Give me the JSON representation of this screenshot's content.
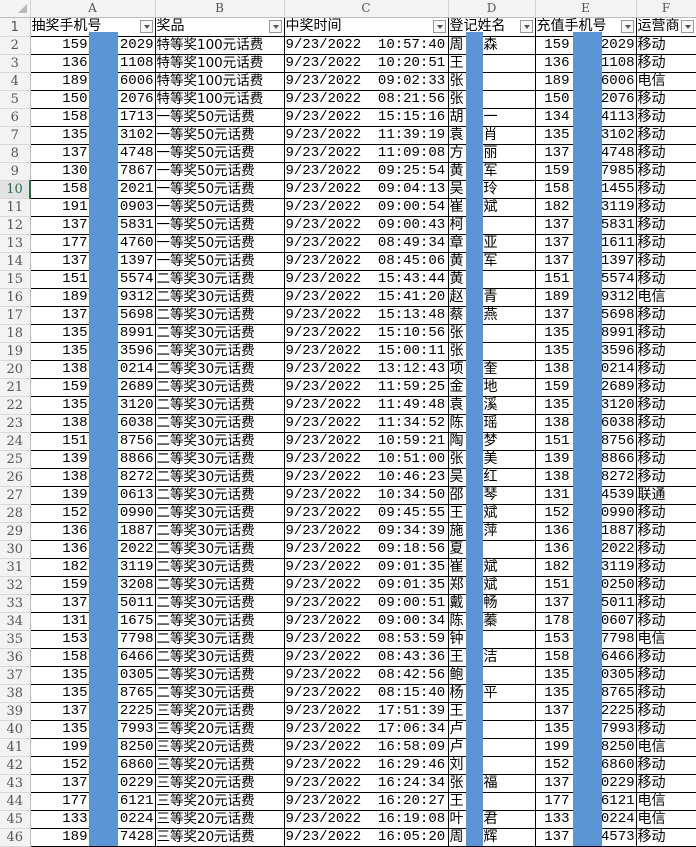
{
  "columns": [
    "A",
    "B",
    "C",
    "D",
    "E",
    "F"
  ],
  "headers": [
    "抽奖手机号",
    "奖品",
    "中奖时间",
    "登记姓名",
    "充值手机号",
    "运营商"
  ],
  "selected_row": 10,
  "mask_color": "#5b95d5",
  "rows": [
    [
      "159",
      "2029",
      "特等奖100元话费",
      "9/23/2022  10:57:40",
      "周",
      "森",
      "159",
      "2029",
      "移动"
    ],
    [
      "136",
      "1108",
      "特等奖100元话费",
      "9/23/2022  10:20:51",
      "王",
      "",
      "136",
      "1108",
      "移动"
    ],
    [
      "189",
      "6006",
      "特等奖100元话费",
      "9/23/2022  09:02:33",
      "张",
      "",
      "189",
      "6006",
      "电信"
    ],
    [
      "150",
      "2076",
      "特等奖100元话费",
      "9/23/2022  08:21:56",
      "张",
      "",
      "150",
      "2076",
      "移动"
    ],
    [
      "158",
      "1713",
      "一等奖50元话费",
      "9/23/2022  15:15:16",
      "胡",
      "一",
      "134",
      "4113",
      "移动"
    ],
    [
      "135",
      "3102",
      "一等奖50元话费",
      "9/23/2022  11:39:19",
      "袁",
      "肖",
      "135",
      "3102",
      "移动"
    ],
    [
      "137",
      "4748",
      "一等奖50元话费",
      "9/23/2022  11:09:08",
      "方",
      "丽",
      "137",
      "4748",
      "移动"
    ],
    [
      "130",
      "7867",
      "一等奖50元话费",
      "9/23/2022  09:25:54",
      "黄",
      "军",
      "159",
      "7985",
      "移动"
    ],
    [
      "158",
      "2021",
      "一等奖50元话费",
      "9/23/2022  09:04:13",
      "吴",
      "玲",
      "158",
      "1455",
      "移动"
    ],
    [
      "191",
      "0903",
      "一等奖50元话费",
      "9/23/2022  09:00:54",
      "崔",
      "斌",
      "182",
      "3119",
      "移动"
    ],
    [
      "137",
      "5831",
      "一等奖50元话费",
      "9/23/2022  09:00:43",
      "柯",
      "",
      "137",
      "5831",
      "移动"
    ],
    [
      "177",
      "4760",
      "一等奖50元话费",
      "9/23/2022  08:49:34",
      "章",
      "亚",
      "137",
      "1611",
      "移动"
    ],
    [
      "137",
      "1397",
      "一等奖50元话费",
      "9/23/2022  08:45:06",
      "黄",
      "军",
      "137",
      "1397",
      "移动"
    ],
    [
      "151",
      "5574",
      "二等奖30元话费",
      "9/23/2022  15:43:44",
      "黄",
      "",
      "151",
      "5574",
      "移动"
    ],
    [
      "189",
      "9312",
      "二等奖30元话费",
      "9/23/2022  15:41:20",
      "赵",
      "青",
      "189",
      "9312",
      "电信"
    ],
    [
      "137",
      "5698",
      "二等奖30元话费",
      "9/23/2022  15:13:48",
      "蔡",
      "燕",
      "137",
      "5698",
      "移动"
    ],
    [
      "135",
      "8991",
      "二等奖30元话费",
      "9/23/2022  15:10:56",
      "张",
      "",
      "135",
      "8991",
      "移动"
    ],
    [
      "135",
      "3596",
      "二等奖30元话费",
      "9/23/2022  15:00:11",
      "张",
      "",
      "135",
      "3596",
      "移动"
    ],
    [
      "138",
      "0214",
      "二等奖30元话费",
      "9/23/2022  13:12:43",
      "项",
      "奎",
      "138",
      "0214",
      "移动"
    ],
    [
      "159",
      "2689",
      "二等奖30元话费",
      "9/23/2022  11:59:25",
      "金",
      "地",
      "159",
      "2689",
      "移动"
    ],
    [
      "135",
      "3120",
      "二等奖30元话费",
      "9/23/2022  11:49:48",
      "袁",
      "溪",
      "135",
      "3120",
      "移动"
    ],
    [
      "138",
      "6038",
      "二等奖30元话费",
      "9/23/2022  11:34:52",
      "陈",
      "瑶",
      "138",
      "6038",
      "移动"
    ],
    [
      "151",
      "8756",
      "二等奖30元话费",
      "9/23/2022  10:59:21",
      "陶",
      "梦",
      "151",
      "8756",
      "移动"
    ],
    [
      "139",
      "8866",
      "二等奖30元话费",
      "9/23/2022  10:51:00",
      "张",
      "美",
      "139",
      "8866",
      "移动"
    ],
    [
      "138",
      "8272",
      "二等奖30元话费",
      "9/23/2022  10:46:23",
      "吴",
      "红",
      "138",
      "8272",
      "移动"
    ],
    [
      "139",
      "0613",
      "二等奖30元话费",
      "9/23/2022  10:34:50",
      "邵",
      "琴",
      "131",
      "4539",
      "联通"
    ],
    [
      "152",
      "0990",
      "二等奖30元话费",
      "9/23/2022  09:45:55",
      "王",
      "斌",
      "152",
      "0990",
      "移动"
    ],
    [
      "136",
      "1887",
      "二等奖30元话费",
      "9/23/2022  09:34:39",
      "施",
      "萍",
      "136",
      "1887",
      "移动"
    ],
    [
      "136",
      "2022",
      "二等奖30元话费",
      "9/23/2022  09:18:56",
      "夏",
      "",
      "136",
      "2022",
      "移动"
    ],
    [
      "182",
      "3119",
      "二等奖30元话费",
      "9/23/2022  09:01:35",
      "崔",
      "斌",
      "182",
      "3119",
      "移动"
    ],
    [
      "159",
      "3208",
      "二等奖30元话费",
      "9/23/2022  09:01:35",
      "郑",
      "斌",
      "151",
      "0250",
      "移动"
    ],
    [
      "137",
      "5011",
      "二等奖30元话费",
      "9/23/2022  09:00:51",
      "戴",
      "畅",
      "137",
      "5011",
      "移动"
    ],
    [
      "131",
      "1675",
      "二等奖30元话费",
      "9/23/2022  09:00:34",
      "陈",
      "蓁",
      "178",
      "0607",
      "移动"
    ],
    [
      "153",
      "7798",
      "二等奖30元话费",
      "9/23/2022  08:53:59",
      "钟",
      "",
      "153",
      "7798",
      "电信"
    ],
    [
      "158",
      "6466",
      "二等奖30元话费",
      "9/23/2022  08:43:36",
      "王",
      "洁",
      "158",
      "6466",
      "移动"
    ],
    [
      "135",
      "0305",
      "二等奖30元话费",
      "9/23/2022  08:42:56",
      "鲍",
      "",
      "135",
      "0305",
      "移动"
    ],
    [
      "135",
      "8765",
      "二等奖30元话费",
      "9/23/2022  08:15:40",
      "杨",
      "平",
      "135",
      "8765",
      "移动"
    ],
    [
      "137",
      "2225",
      "三等奖20元话费",
      "9/23/2022  17:51:39",
      "王",
      "",
      "137",
      "2225",
      "移动"
    ],
    [
      "135",
      "7993",
      "三等奖20元话费",
      "9/23/2022  17:06:34",
      "卢",
      "",
      "135",
      "7993",
      "移动"
    ],
    [
      "199",
      "8250",
      "三等奖20元话费",
      "9/23/2022  16:58:09",
      "卢",
      "",
      "199",
      "8250",
      "电信"
    ],
    [
      "152",
      "6860",
      "三等奖20元话费",
      "9/23/2022  16:29:46",
      "刘",
      "",
      "152",
      "6860",
      "移动"
    ],
    [
      "137",
      "0229",
      "三等奖20元话费",
      "9/23/2022  16:24:34",
      "张",
      "福",
      "137",
      "0229",
      "移动"
    ],
    [
      "177",
      "6121",
      "三等奖20元话费",
      "9/23/2022  16:20:27",
      "王",
      "",
      "177",
      "6121",
      "电信"
    ],
    [
      "133",
      "0224",
      "三等奖20元话费",
      "9/23/2022  16:19:08",
      "叶",
      "君",
      "133",
      "0224",
      "电信"
    ],
    [
      "189",
      "7428",
      "三等奖20元话费",
      "9/23/2022  16:05:20",
      "周",
      "辉",
      "137",
      "4573",
      "移动"
    ]
  ]
}
